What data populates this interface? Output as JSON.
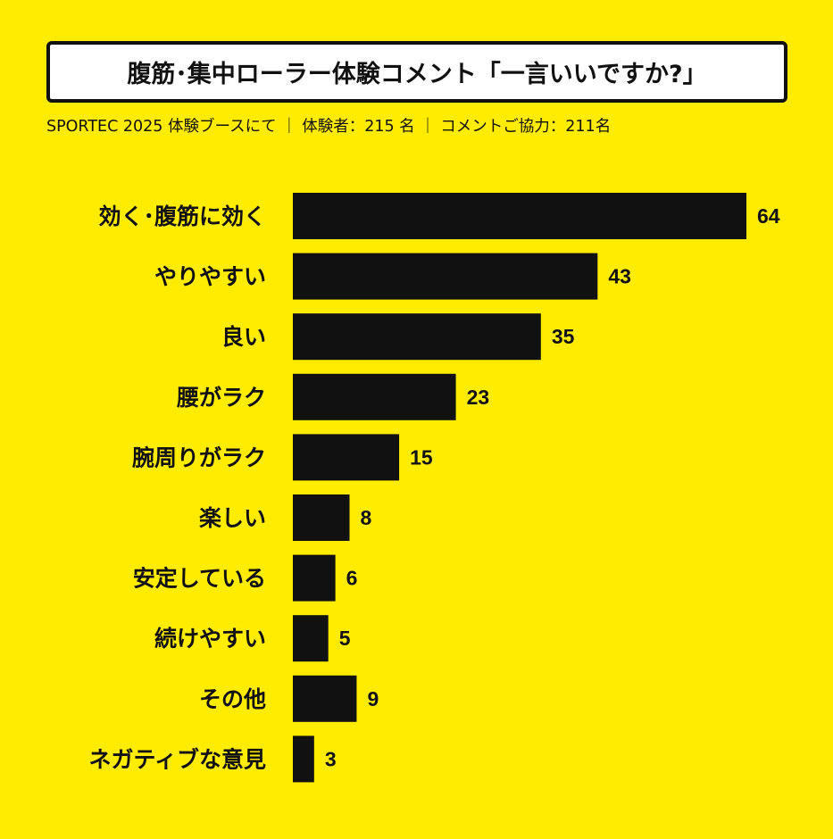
{
  "title": "腹筋･集中ローラー体験コメント「一言いいですか?」",
  "subtitle": "SPORTEC 2025 体験ブースにて ｜ 体験者：215 名 ｜ コメントご協力：211名",
  "colors": {
    "background": "#FFEC00",
    "bar": "#111111"
  },
  "chart_data": {
    "type": "bar",
    "orientation": "horizontal",
    "title": "腹筋･集中ローラー体験コメント「一言いいですか?」",
    "categories": [
      "効く･腹筋に効く",
      "やりやすい",
      "良い",
      "腰がラク",
      "腕周りがラク",
      "楽しい",
      "安定している",
      "続けやすい",
      "その他",
      "ネガティブな意見"
    ],
    "values": [
      64,
      43,
      35,
      23,
      15,
      8,
      6,
      5,
      9,
      3
    ],
    "value_labels": [
      "64",
      "43",
      "35",
      "23",
      "15",
      "8",
      "6",
      "5",
      "9",
      "3"
    ],
    "xlim": [
      0,
      64
    ],
    "grid": false,
    "legend": "none"
  }
}
